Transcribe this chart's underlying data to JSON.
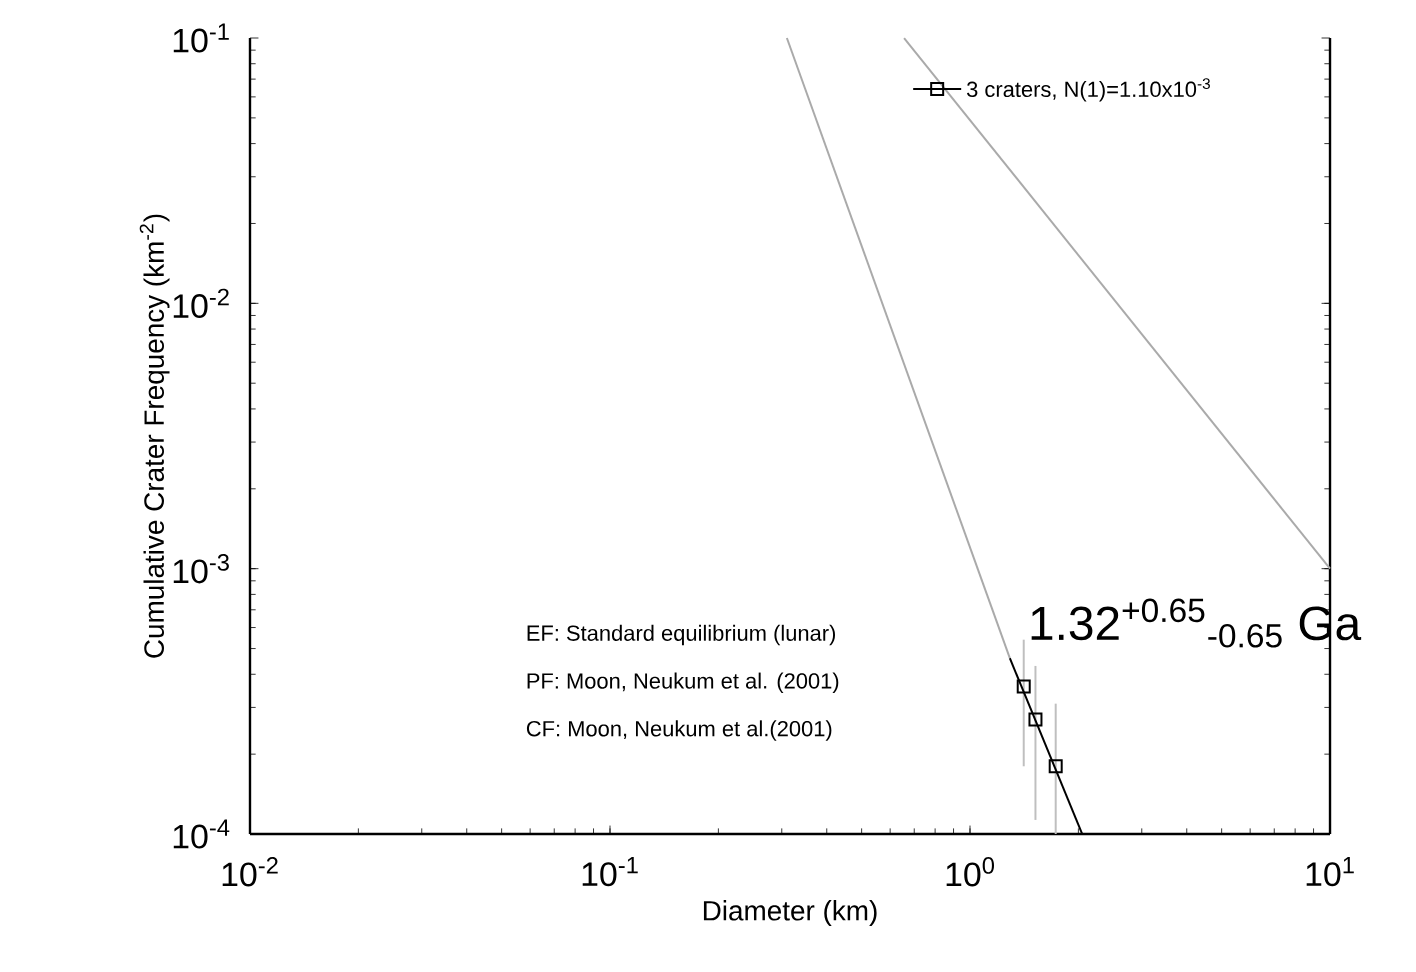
{
  "chart_data": {
    "type": "scatter",
    "xlabel": "Diameter (km)",
    "ylabel": "Cumulative Crater Frequency (km$^{-2}$)",
    "log": "xy",
    "legend": "top right",
    "grid": false,
    "xlim": [
      0.01,
      10
    ],
    "ylim": [
      0.0001,
      0.1
    ],
    "xticks": [
      {
        "value": 0.01,
        "label": "10$^{-2}$"
      },
      {
        "value": 0.1,
        "label": "10$^{-1}$"
      },
      {
        "value": 1,
        "label": "10$^{0}$"
      },
      {
        "value": 10,
        "label": "10$^{1}$"
      }
    ],
    "yticks": [
      {
        "value": 0.0001,
        "label": "10$^{-4}$"
      },
      {
        "value": 0.001,
        "label": "10$^{-3}$"
      },
      {
        "value": 0.01,
        "label": "10$^{-2}$"
      },
      {
        "value": 0.1,
        "label": "10$^{-1}$"
      }
    ],
    "series": [
      {
        "name": "3 craters, N(1)=1.10x10$^{-3}$",
        "color": "#000000",
        "marker": "square",
        "x": [
          1.41,
          1.52,
          1.73
        ],
        "values": [
          0.00036,
          0.00027,
          0.00018
        ],
        "errors": [
          [
            0.00018,
            0.00054
          ],
          [
            0.000113,
            0.00043
          ],
          [
            0.0001,
            0.00031
          ]
        ]
      },
      {
        "type": "line",
        "color": "#000000",
        "x": [
          1.29,
          2.05
        ],
        "values": [
          0.00046,
          0.0001
        ]
      },
      {
        "type": "line",
        "color": "#aaaaaa",
        "x": [
          0.31,
          1.29
        ],
        "values": [
          0.1,
          0.00046
        ]
      },
      {
        "type": "line",
        "color": "#aaaaaa",
        "x": [
          0.656,
          10
        ],
        "values": [
          0.1,
          0.001
        ]
      }
    ],
    "annotations": [
      "EF: Standard equilibrium (lunar)",
      "PF: Moon, Neukum et al. (2001)",
      "CF: Moon, Neukum et al.(2001)",
      "1.32$^{+0.65}$$_{-0.65}$ Ga"
    ]
  }
}
